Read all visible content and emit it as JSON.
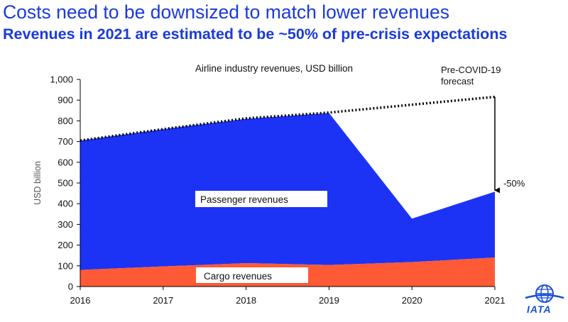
{
  "header": {
    "title": "Costs need to be downsized to match lower revenues",
    "subtitle": "Revenues in 2021 are estimated to be ~50% of pre-crisis expectations"
  },
  "chart_data": {
    "type": "area",
    "title": "Airline industry revenues, USD billion",
    "xlabel": "",
    "ylabel": "USD billion",
    "categories": [
      "2016",
      "2017",
      "2018",
      "2019",
      "2020",
      "2021"
    ],
    "ylim": [
      0,
      1000
    ],
    "yticks": [
      "0",
      "100",
      "200",
      "300",
      "400",
      "500",
      "600",
      "700",
      "800",
      "900",
      "1,000"
    ],
    "stacked": true,
    "series": [
      {
        "name": "Cargo revenues",
        "values": [
          80,
          97,
          113,
          104,
          118,
          140
        ],
        "color": "#ff5a36"
      },
      {
        "name": "Passenger revenues",
        "values": [
          625,
          663,
          697,
          734,
          210,
          318
        ],
        "color": "#1c33f5"
      }
    ],
    "forecast": {
      "label": "Pre-COVID-19 forecast",
      "values": [
        705,
        760,
        812,
        840,
        878,
        916
      ],
      "style": "dotted"
    },
    "annotation": {
      "label": "-50%",
      "from": 916,
      "to": 458,
      "category": "2021"
    },
    "grid": false,
    "legend": "inline labels"
  },
  "logo": {
    "text": "IATA",
    "color": "#1a4fd6"
  }
}
